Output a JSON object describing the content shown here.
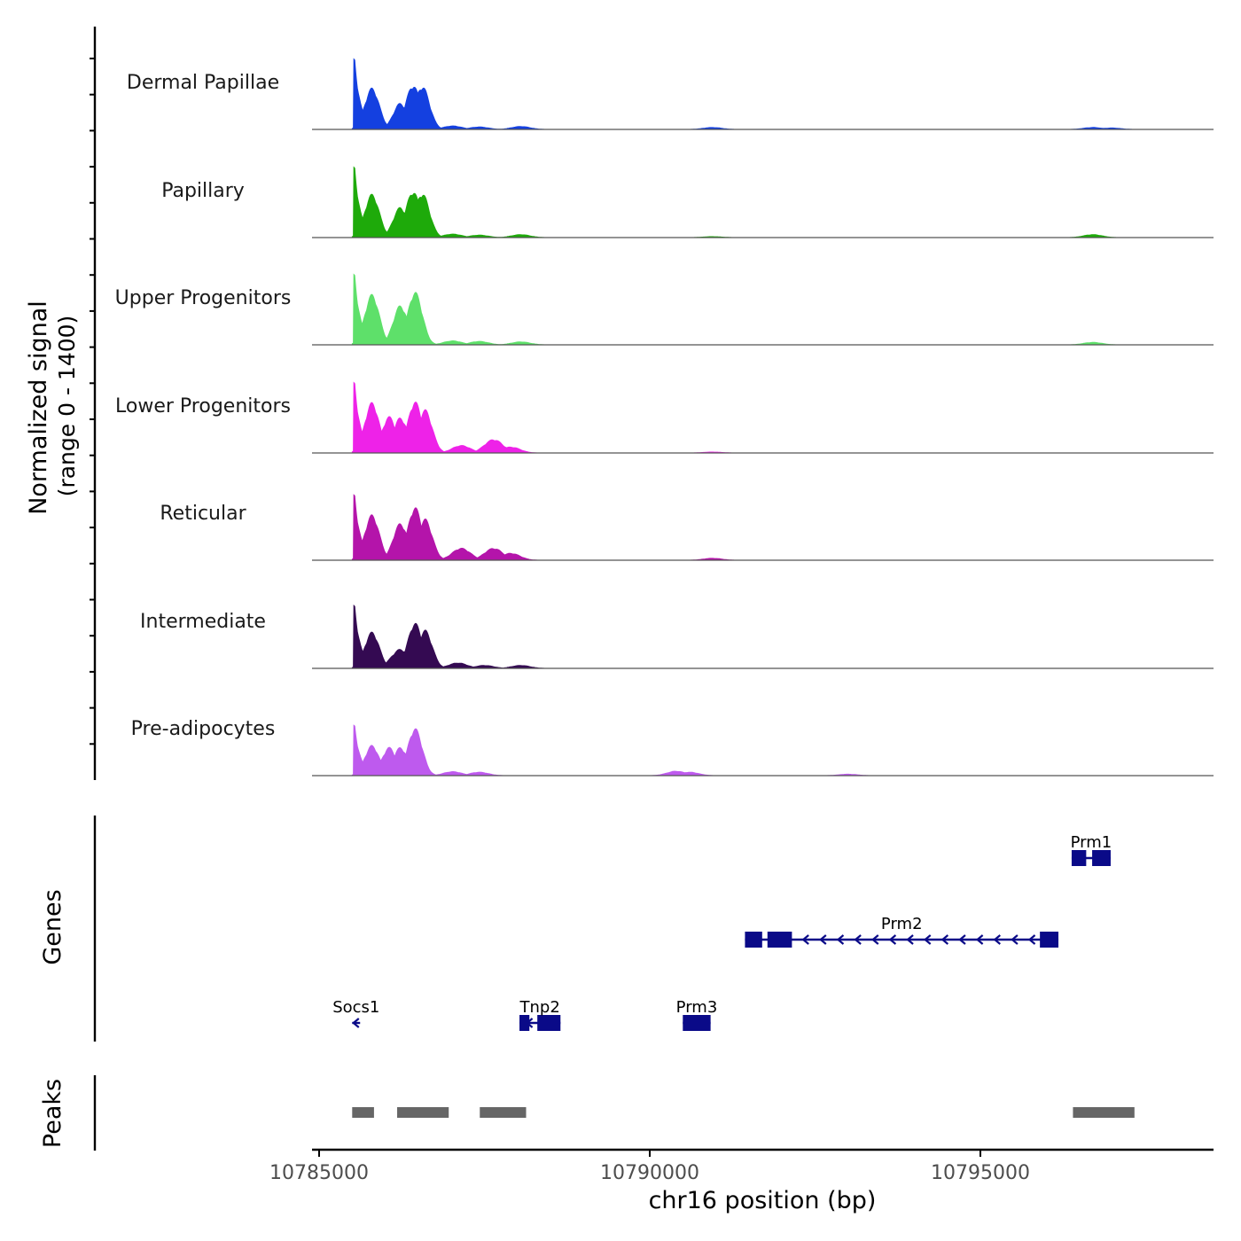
{
  "chart_data": {
    "type": "area",
    "chromosome": "chr16",
    "x_range": [
      10785000,
      10798500
    ],
    "xlabel": "chr16 position (bp)",
    "x_ticks": [
      10785000,
      10790000,
      10795000
    ],
    "x_tick_labels": [
      "10785000",
      "10790000",
      "10795000"
    ],
    "ylabel_line1": "Normalized signal",
    "ylabel_line2": "(range 0 - 1400)",
    "y_range": [
      0,
      1400
    ],
    "coverage_tracks": [
      {
        "name": "Dermal Papillae",
        "color": "#1440e0",
        "peaks": [
          [
            10785540,
            1400
          ],
          [
            10785800,
            820
          ],
          [
            10786230,
            520
          ],
          [
            10786420,
            880
          ],
          [
            10786560,
            860
          ],
          [
            10787020,
            70
          ],
          [
            10787420,
            50
          ],
          [
            10788050,
            60
          ],
          [
            10790950,
            40
          ],
          [
            10796700,
            40
          ],
          [
            10796980,
            30
          ]
        ]
      },
      {
        "name": "Papillary",
        "color": "#1eaa0a",
        "peaks": [
          [
            10785540,
            1400
          ],
          [
            10785800,
            860
          ],
          [
            10786230,
            600
          ],
          [
            10786420,
            920
          ],
          [
            10786560,
            880
          ],
          [
            10787020,
            70
          ],
          [
            10787420,
            50
          ],
          [
            10788050,
            60
          ],
          [
            10796700,
            60
          ],
          [
            10790950,
            20
          ]
        ]
      },
      {
        "name": "Upper Progenitors",
        "color": "#5ee06a",
        "peaks": [
          [
            10785540,
            1400
          ],
          [
            10785800,
            1000
          ],
          [
            10786230,
            780
          ],
          [
            10786450,
            1050
          ],
          [
            10787020,
            80
          ],
          [
            10787420,
            70
          ],
          [
            10788050,
            60
          ],
          [
            10796700,
            50
          ]
        ]
      },
      {
        "name": "Lower Progenitors",
        "color": "#ee22e8",
        "peaks": [
          [
            10785540,
            1400
          ],
          [
            10785800,
            1000
          ],
          [
            10786060,
            720
          ],
          [
            10786230,
            700
          ],
          [
            10786450,
            1020
          ],
          [
            10786600,
            860
          ],
          [
            10787150,
            150
          ],
          [
            10787640,
            270
          ],
          [
            10787900,
            120
          ],
          [
            10790950,
            20
          ]
        ]
      },
      {
        "name": "Reticular",
        "color": "#b414aa",
        "peaks": [
          [
            10785540,
            1300
          ],
          [
            10785800,
            900
          ],
          [
            10786230,
            730
          ],
          [
            10786450,
            1050
          ],
          [
            10786600,
            820
          ],
          [
            10787150,
            240
          ],
          [
            10787640,
            240
          ],
          [
            10787900,
            140
          ],
          [
            10790950,
            40
          ]
        ]
      },
      {
        "name": "Intermediate",
        "color": "#340a52",
        "peaks": [
          [
            10785540,
            1250
          ],
          [
            10785800,
            720
          ],
          [
            10786230,
            380
          ],
          [
            10786450,
            900
          ],
          [
            10786600,
            760
          ],
          [
            10787100,
            110
          ],
          [
            10787500,
            60
          ],
          [
            10788050,
            60
          ]
        ]
      },
      {
        "name": "Pre-adipocytes",
        "color": "#be5aee",
        "peaks": [
          [
            10785540,
            1000
          ],
          [
            10785800,
            600
          ],
          [
            10786060,
            560
          ],
          [
            10786230,
            560
          ],
          [
            10786450,
            940
          ],
          [
            10787020,
            80
          ],
          [
            10787420,
            70
          ],
          [
            10790400,
            90
          ],
          [
            10790600,
            70
          ],
          [
            10793000,
            30
          ]
        ]
      }
    ],
    "genes_track_label": "Genes",
    "genes": [
      {
        "name": "Socs1",
        "strand": "-",
        "row": 3,
        "start": 10785500,
        "end": 10785620,
        "exons": []
      },
      {
        "name": "Tnp2",
        "strand": "-",
        "row": 3,
        "start": 10788030,
        "end": 10788650,
        "exons": [
          [
            10788030,
            10788180
          ],
          [
            10788300,
            10788650
          ]
        ]
      },
      {
        "name": "Prm3",
        "strand": "-",
        "row": 3,
        "start": 10790500,
        "end": 10790920,
        "exons": [
          [
            10790500,
            10790920
          ]
        ]
      },
      {
        "name": "Prm2",
        "strand": "-",
        "row": 2,
        "start": 10791440,
        "end": 10796180,
        "exons": [
          [
            10791440,
            10791700
          ],
          [
            10791780,
            10792150
          ],
          [
            10795900,
            10796180
          ]
        ]
      },
      {
        "name": "Prm1",
        "strand": "-",
        "row": 1,
        "start": 10796380,
        "end": 10796970,
        "exons": [
          [
            10796380,
            10796600
          ],
          [
            10796690,
            10796970
          ]
        ]
      }
    ],
    "peaks_track_label": "Peaks",
    "peak_regions": [
      [
        10785500,
        10785830
      ],
      [
        10786180,
        10786960
      ],
      [
        10787430,
        10788130
      ],
      [
        10796400,
        10797330
      ]
    ]
  }
}
